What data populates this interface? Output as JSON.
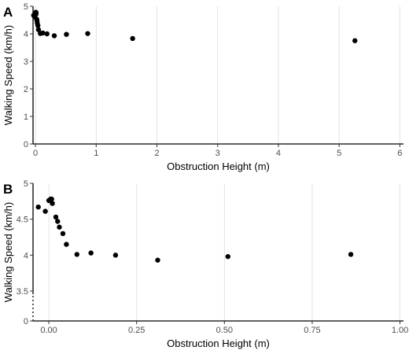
{
  "colors": {
    "point": "#000000",
    "grid": "#dcdcdc",
    "axis": "#000000",
    "tick_text": "#4d4d4d"
  },
  "chart_data": [
    {
      "type": "scatter",
      "panel_label": "A",
      "xlabel": "Obstruction Height (m)",
      "ylabel": "Walking Speed (km/h)",
      "xlim": [
        -0.04,
        6.06
      ],
      "ylim": [
        0,
        5
      ],
      "x_ticks": [
        0,
        1,
        2,
        3,
        4,
        5,
        6
      ],
      "x_tick_labels": [
        "0",
        "1",
        "2",
        "3",
        "4",
        "5",
        "6"
      ],
      "y_ticks": [
        0,
        1,
        2,
        3,
        4,
        5
      ],
      "y_tick_labels": [
        "0",
        "1",
        "2",
        "3",
        "4",
        "5"
      ],
      "grid": "vertical",
      "axis_break": false,
      "series": [
        {
          "x": [
            -0.03,
            -0.01,
            0.0,
            0.005,
            0.008,
            0.01,
            0.02,
            0.025,
            0.03,
            0.04,
            0.05,
            0.08,
            0.12,
            0.19,
            0.31,
            0.51,
            0.86,
            1.6,
            5.26
          ],
          "y": [
            4.67,
            4.61,
            4.76,
            4.78,
            4.78,
            4.72,
            4.53,
            4.47,
            4.39,
            4.3,
            4.15,
            4.01,
            4.03,
            4.0,
            3.93,
            3.98,
            4.01,
            3.83,
            3.75
          ]
        }
      ]
    },
    {
      "type": "scatter",
      "panel_label": "B",
      "xlabel": "Obstruction Height (m)",
      "ylabel": "Walking Speed (km/h)",
      "xlim": [
        -0.045,
        1.01
      ],
      "ylim": [
        0,
        5
      ],
      "x_ticks": [
        0,
        0.25,
        0.5,
        0.75,
        1.0
      ],
      "x_tick_labels": [
        "0.00",
        "0.25",
        "0.50",
        "0.75",
        "1.00"
      ],
      "y_ticks": [
        0,
        3.5,
        4,
        4.5,
        5
      ],
      "y_tick_labels": [
        "0",
        "3.5",
        "4",
        "4.5",
        "5"
      ],
      "grid": "vertical",
      "axis_break": true,
      "series": [
        {
          "x": [
            -0.03,
            -0.01,
            0.0,
            0.005,
            0.008,
            0.01,
            0.02,
            0.025,
            0.03,
            0.04,
            0.05,
            0.08,
            0.12,
            0.19,
            0.31,
            0.51,
            0.86
          ],
          "y": [
            4.67,
            4.61,
            4.76,
            4.78,
            4.78,
            4.72,
            4.53,
            4.47,
            4.39,
            4.3,
            4.15,
            4.01,
            4.03,
            4.0,
            3.93,
            3.98,
            4.01
          ]
        }
      ]
    }
  ]
}
